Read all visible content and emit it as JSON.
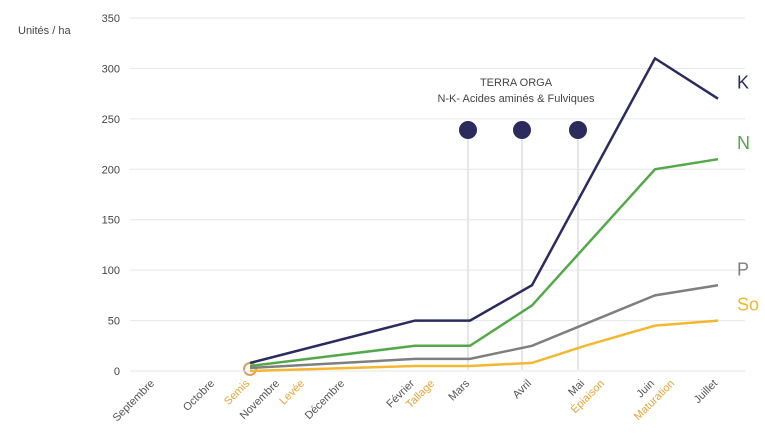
{
  "chart_data": {
    "type": "line",
    "y_label": "Unités / ha",
    "annotation": [
      "TERRA ORGA",
      "N-K- Acides aminés & Fulviques"
    ],
    "categories": [
      "Septembre",
      "Octobre",
      "Semis",
      "Novembre",
      "Levée",
      "Décembre",
      "Février",
      "Tallage",
      "Mars",
      "Avril",
      "Mai",
      "Épiaison",
      "Juin",
      "Maturation",
      "Juillet"
    ],
    "category_colors": [
      "#555555",
      "#555555",
      "#e8a33a",
      "#555555",
      "#e8a33a",
      "#555555",
      "#555555",
      "#e8a33a",
      "#555555",
      "#555555",
      "#555555",
      "#e8a33a",
      "#555555",
      "#e8a33a",
      "#555555"
    ],
    "series": [
      {
        "name": "K",
        "color": "#2b2b5e",
        "x": [
          "Semis",
          "Février",
          "Mars",
          "Avril",
          "Juin",
          "Juillet"
        ],
        "values": [
          8,
          50,
          50,
          85,
          310,
          270
        ]
      },
      {
        "name": "N",
        "color": "#55a84a",
        "x": [
          "Semis",
          "Février",
          "Mars",
          "Avril",
          "Juin",
          "Juillet"
        ],
        "values": [
          5,
          25,
          25,
          65,
          200,
          210
        ]
      },
      {
        "name": "P",
        "color": "#7f7f7f",
        "x": [
          "Semis",
          "Février",
          "Mars",
          "Avril",
          "Juin",
          "Juillet"
        ],
        "values": [
          3,
          12,
          12,
          25,
          75,
          85
        ]
      },
      {
        "name": "So",
        "color": "#f4b731",
        "x": [
          "Semis",
          "Février",
          "Mars",
          "Avril",
          "Mai",
          "Juin",
          "Juillet"
        ],
        "values": [
          0,
          5,
          5,
          8,
          25,
          45,
          50
        ]
      }
    ],
    "ylim": [
      0,
      350
    ],
    "yticks": [
      0,
      50,
      100,
      150,
      200,
      250,
      300,
      350
    ],
    "grid": true
  }
}
